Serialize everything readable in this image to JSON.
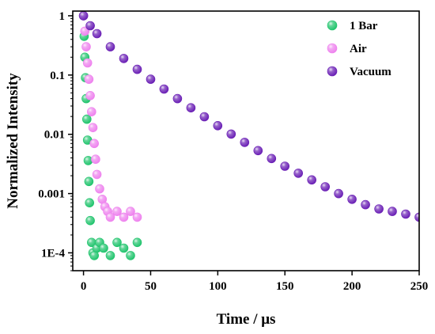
{
  "chart_data": {
    "type": "scatter",
    "xlabel": "Time / μs",
    "ylabel": "Normalized Intensity",
    "xlim": [
      -8,
      250
    ],
    "ylim": [
      5e-05,
      1.2
    ],
    "yscale": "log",
    "xticks": [
      0,
      50,
      100,
      150,
      200,
      250
    ],
    "xtick_labels": [
      "0",
      "50",
      "100",
      "150",
      "200",
      "250"
    ],
    "yticks": [
      1,
      0.1,
      0.01,
      0.001,
      0.0001
    ],
    "ytick_labels": [
      "1",
      "0.1",
      "0.01",
      "0.001",
      "1E-4"
    ],
    "legend_position": "top-right",
    "grid": false,
    "series": [
      {
        "name": "1 Bar",
        "color": "#21c46d",
        "x": [
          0,
          0.5,
          1,
          1.5,
          2,
          2.5,
          3,
          3.5,
          4,
          4.5,
          5,
          6,
          7,
          8,
          10,
          12,
          15,
          20,
          25,
          30,
          35,
          40
        ],
        "y": [
          1,
          0.45,
          0.2,
          0.09,
          0.04,
          0.018,
          0.008,
          0.0036,
          0.0016,
          0.0007,
          0.00035,
          0.00015,
          0.0001,
          9e-05,
          0.00012,
          0.00015,
          0.00012,
          9e-05,
          0.00015,
          0.00012,
          9e-05,
          0.00015
        ]
      },
      {
        "name": "Air",
        "color": "#ee82ee",
        "x": [
          0,
          1,
          2,
          3,
          4,
          5,
          6,
          7,
          8,
          9,
          10,
          12,
          14,
          16,
          18,
          20,
          25,
          30,
          35,
          40
        ],
        "y": [
          1,
          0.55,
          0.3,
          0.16,
          0.085,
          0.045,
          0.024,
          0.013,
          0.007,
          0.0038,
          0.0021,
          0.0012,
          0.0008,
          0.0006,
          0.0005,
          0.0004,
          0.0005,
          0.0004,
          0.0005,
          0.0004
        ]
      },
      {
        "name": "Vacuum",
        "color": "#6a1fb5",
        "x": [
          0,
          5,
          10,
          20,
          30,
          40,
          50,
          60,
          70,
          80,
          90,
          100,
          110,
          120,
          130,
          140,
          150,
          160,
          170,
          180,
          190,
          200,
          210,
          220,
          230,
          240,
          250
        ],
        "y": [
          1,
          0.68,
          0.5,
          0.3,
          0.19,
          0.125,
          0.085,
          0.058,
          0.04,
          0.028,
          0.0198,
          0.014,
          0.0101,
          0.0073,
          0.0053,
          0.0039,
          0.0029,
          0.0022,
          0.0017,
          0.0013,
          0.001,
          0.0008,
          0.00065,
          0.00055,
          0.0005,
          0.00045,
          0.0004
        ]
      }
    ]
  }
}
